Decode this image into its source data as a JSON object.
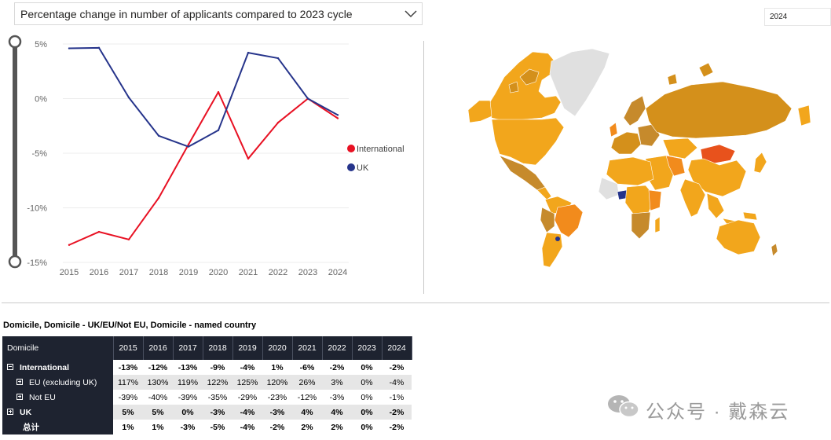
{
  "filter": {
    "measure_selected": "Percentage change in number of applicants compared to 2023 cycle"
  },
  "year_slicer": {
    "value": "2024"
  },
  "colors": {
    "international": "#e81123",
    "uk": "#26348b"
  },
  "icons": {
    "dropdown": "chevron-down-icon",
    "slider": "range-slider-icon"
  },
  "chart_data": {
    "type": "line",
    "title": "",
    "xlabel": "",
    "ylabel": "",
    "x": [
      "2015",
      "2016",
      "2017",
      "2018",
      "2019",
      "2020",
      "2021",
      "2022",
      "2023",
      "2024"
    ],
    "ylim": [
      -15,
      5
    ],
    "yticks": [
      "5%",
      "0%",
      "-5%",
      "-10%",
      "-15%"
    ],
    "ytick_values": [
      5,
      0,
      -5,
      -10,
      -15
    ],
    "grid": true,
    "legend_position": "right",
    "series": [
      {
        "name": "International",
        "color": "#e81123",
        "values": [
          -13.4,
          -12.2,
          -12.9,
          -9.1,
          -4.2,
          0.6,
          -5.5,
          -2.2,
          0,
          -1.8
        ]
      },
      {
        "name": "UK",
        "color": "#26348b",
        "values": [
          4.6,
          4.65,
          0.1,
          -3.4,
          -4.4,
          -2.9,
          4.2,
          3.7,
          0,
          -1.5
        ]
      }
    ]
  },
  "map": {
    "label": "world-choropleth-map"
  },
  "matrix": {
    "title": "Domicile, Domicile - UK/EU/Not EU, Domicile - named country",
    "corner": "Domicile",
    "years": [
      "2015",
      "2016",
      "2017",
      "2018",
      "2019",
      "2020",
      "2021",
      "2022",
      "2023",
      "2024"
    ],
    "rows": [
      {
        "label": "International",
        "values": [
          "-13%",
          "-12%",
          "-13%",
          "-9%",
          "-4%",
          "1%",
          "-6%",
          "-2%",
          "0%",
          "-2%"
        ]
      },
      {
        "label": "EU (excluding UK)",
        "values": [
          "117%",
          "130%",
          "119%",
          "122%",
          "125%",
          "120%",
          "26%",
          "3%",
          "0%",
          "-4%"
        ]
      },
      {
        "label": "Not EU",
        "values": [
          "-39%",
          "-40%",
          "-39%",
          "-35%",
          "-29%",
          "-23%",
          "-12%",
          "-3%",
          "0%",
          "-1%"
        ]
      },
      {
        "label": "UK",
        "values": [
          "5%",
          "5%",
          "0%",
          "-3%",
          "-4%",
          "-3%",
          "4%",
          "4%",
          "0%",
          "-2%"
        ]
      },
      {
        "label": "总计",
        "values": [
          "1%",
          "1%",
          "-3%",
          "-5%",
          "-4%",
          "-2%",
          "2%",
          "2%",
          "0%",
          "-2%"
        ]
      }
    ]
  },
  "watermark": {
    "text": "公众号 · 戴森云"
  }
}
